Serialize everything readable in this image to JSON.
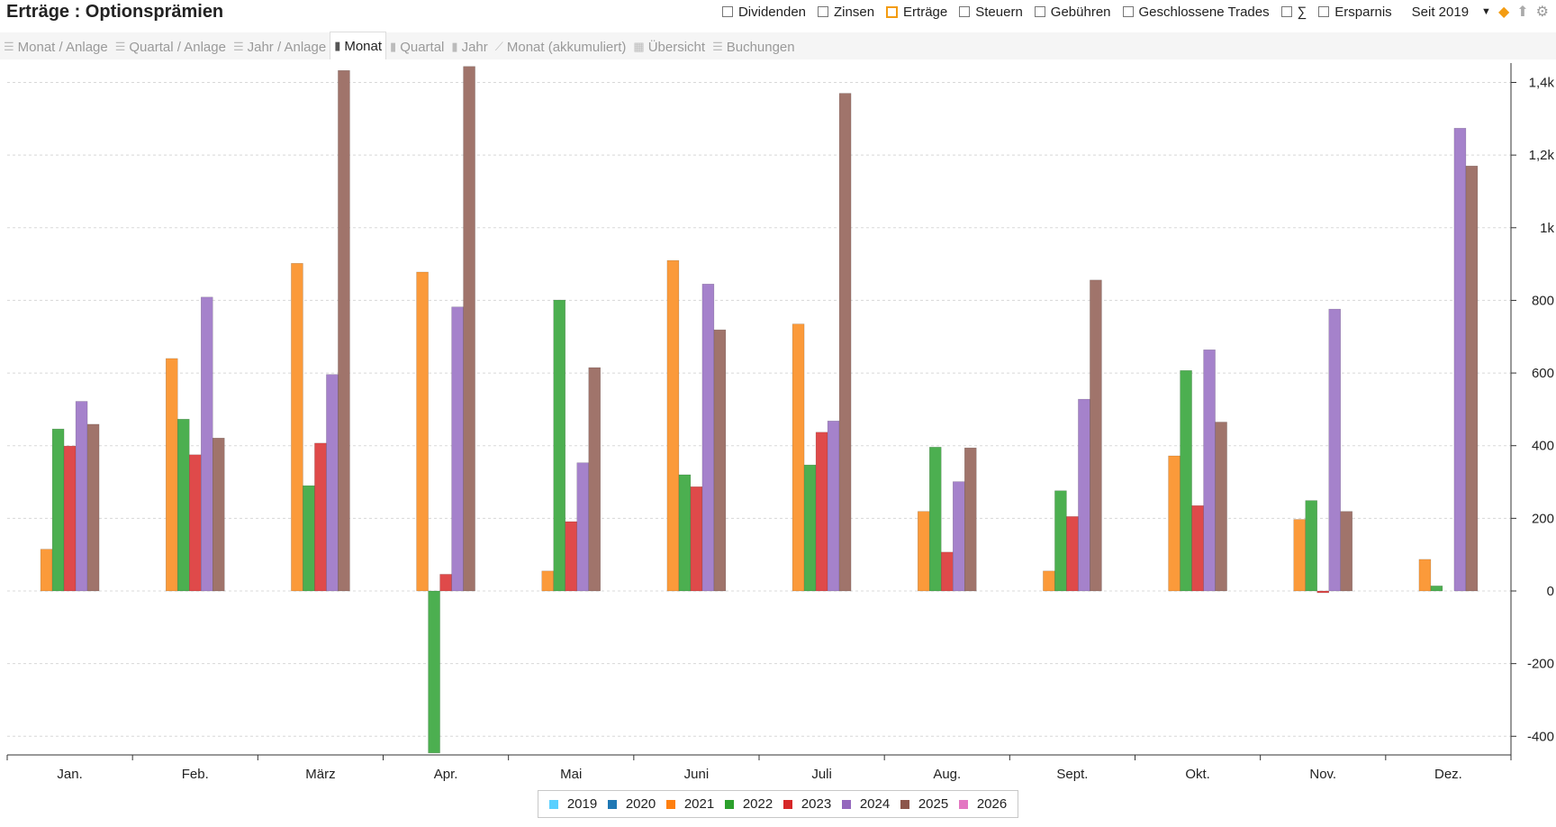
{
  "header": {
    "title": "Erträge : Optionsprämien",
    "filters": [
      {
        "label": "Dividenden",
        "checked": false
      },
      {
        "label": "Zinsen",
        "checked": false
      },
      {
        "label": "Erträge",
        "checked": true
      },
      {
        "label": "Steuern",
        "checked": false
      },
      {
        "label": "Gebühren",
        "checked": false
      },
      {
        "label": "Geschlossene Trades",
        "checked": false
      },
      {
        "label": "∑",
        "checked": false
      },
      {
        "label": "Ersparnis",
        "checked": false
      }
    ],
    "period": "Seit 2019",
    "icons": [
      "layers-icon",
      "export-icon",
      "gear-icon"
    ]
  },
  "tabs": [
    {
      "label": "Monat / Anlage",
      "icon": "list-icon",
      "active": false
    },
    {
      "label": "Quartal / Anlage",
      "icon": "list-icon",
      "active": false
    },
    {
      "label": "Jahr / Anlage",
      "icon": "list-icon",
      "active": false
    },
    {
      "label": "Monat",
      "icon": "bar-chart-icon",
      "active": true
    },
    {
      "label": "Quartal",
      "icon": "bar-chart-icon",
      "active": false
    },
    {
      "label": "Jahr",
      "icon": "bar-chart-icon",
      "active": false
    },
    {
      "label": "Monat (akkumuliert)",
      "icon": "line-chart-icon",
      "active": false
    },
    {
      "label": "Übersicht",
      "icon": "calendar-icon",
      "active": false
    },
    {
      "label": "Buchungen",
      "icon": "list-icon",
      "active": false
    }
  ],
  "chart_data": {
    "type": "bar",
    "categories": [
      "Jan.",
      "Feb.",
      "März",
      "Apr.",
      "Mai",
      "Juni",
      "Juli",
      "Aug.",
      "Sept.",
      "Okt.",
      "Nov.",
      "Dez."
    ],
    "ylim": [
      -450,
      1480
    ],
    "y_ticks": [
      {
        "value": 1400,
        "label": "1,4k"
      },
      {
        "value": 1200,
        "label": "1,2k"
      },
      {
        "value": 1000,
        "label": "1k"
      },
      {
        "value": 800,
        "label": "800"
      },
      {
        "value": 600,
        "label": "600"
      },
      {
        "value": 400,
        "label": "400"
      },
      {
        "value": 200,
        "label": "200"
      },
      {
        "value": 0,
        "label": "0"
      },
      {
        "value": -200,
        "label": "-200"
      },
      {
        "value": -400,
        "label": "-400"
      }
    ],
    "y_axis_position": "right",
    "grid": true,
    "legend_position": "bottom",
    "series": [
      {
        "name": "2019",
        "color": "#5ad0ff",
        "legend_color": "#5ad0ff",
        "values": [
          null,
          null,
          null,
          null,
          null,
          null,
          null,
          null,
          null,
          null,
          null,
          null
        ]
      },
      {
        "name": "2020",
        "color": "#1f77b4",
        "legend_color": "#1f77b4",
        "values": [
          null,
          null,
          null,
          null,
          null,
          null,
          null,
          null,
          null,
          null,
          null,
          null
        ]
      },
      {
        "name": "2021",
        "color": "#fb9a3a",
        "legend_color": "#ff7f0e",
        "values": [
          115,
          640,
          902,
          878,
          55,
          910,
          735,
          219,
          55,
          372,
          197,
          87
        ]
      },
      {
        "name": "2022",
        "color": "#4caf50",
        "legend_color": "#2ca02c",
        "values": [
          446,
          473,
          290,
          -446,
          801,
          320,
          347,
          396,
          276,
          607,
          249,
          14
        ]
      },
      {
        "name": "2023",
        "color": "#df4a4a",
        "legend_color": "#d62728",
        "values": [
          399,
          375,
          407,
          46,
          191,
          287,
          437,
          107,
          205,
          235,
          -5,
          null
        ]
      },
      {
        "name": "2024",
        "color": "#a582cb",
        "legend_color": "#9467bd",
        "values": [
          522,
          809,
          596,
          782,
          353,
          845,
          468,
          301,
          528,
          664,
          776,
          1274
        ]
      },
      {
        "name": "2025",
        "color": "#a0746b",
        "legend_color": "#8c564b",
        "values": [
          459,
          421,
          1433,
          1444,
          615,
          719,
          1370,
          394,
          856,
          465,
          219,
          1170
        ]
      },
      {
        "name": "2026",
        "color": "#e377c2",
        "legend_color": "#e377c2",
        "values": [
          null,
          null,
          null,
          null,
          null,
          null,
          null,
          null,
          null,
          null,
          null,
          null
        ]
      }
    ]
  }
}
